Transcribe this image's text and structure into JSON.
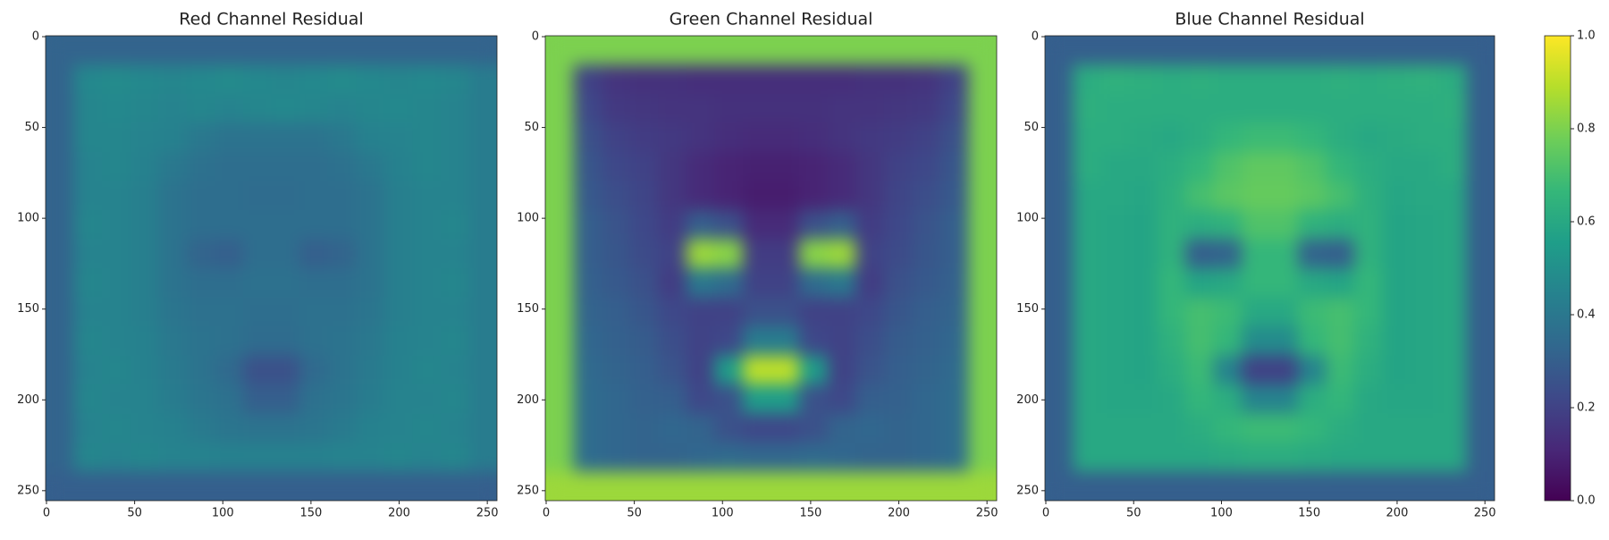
{
  "chart_data": [
    {
      "type": "heatmap",
      "title": "Red Channel Residual",
      "xlim": [
        -0.5,
        255.5
      ],
      "ylim": [
        255.5,
        -0.5
      ],
      "xticks": [
        0,
        50,
        100,
        150,
        200,
        250
      ],
      "yticks": [
        0,
        50,
        100,
        150,
        200,
        250
      ],
      "z": [
        [
          0.32,
          0.32,
          0.32,
          0.32,
          0.32,
          0.32,
          0.32,
          0.32,
          0.32,
          0.32,
          0.32,
          0.32,
          0.32,
          0.32,
          0.32,
          0.32
        ],
        [
          0.32,
          0.47,
          0.48,
          0.47,
          0.46,
          0.47,
          0.48,
          0.47,
          0.46,
          0.47,
          0.48,
          0.47,
          0.46,
          0.47,
          0.46,
          0.42
        ],
        [
          0.32,
          0.46,
          0.47,
          0.46,
          0.45,
          0.46,
          0.45,
          0.46,
          0.47,
          0.46,
          0.45,
          0.46,
          0.47,
          0.46,
          0.45,
          0.42
        ],
        [
          0.32,
          0.46,
          0.46,
          0.45,
          0.44,
          0.4,
          0.38,
          0.38,
          0.38,
          0.38,
          0.4,
          0.44,
          0.45,
          0.46,
          0.45,
          0.42
        ],
        [
          0.32,
          0.45,
          0.46,
          0.44,
          0.4,
          0.37,
          0.36,
          0.36,
          0.36,
          0.36,
          0.37,
          0.4,
          0.44,
          0.46,
          0.45,
          0.42
        ],
        [
          0.32,
          0.45,
          0.45,
          0.43,
          0.38,
          0.36,
          0.36,
          0.35,
          0.35,
          0.36,
          0.36,
          0.38,
          0.43,
          0.45,
          0.45,
          0.42
        ],
        [
          0.32,
          0.46,
          0.45,
          0.43,
          0.38,
          0.36,
          0.36,
          0.36,
          0.36,
          0.36,
          0.36,
          0.38,
          0.43,
          0.45,
          0.46,
          0.42
        ],
        [
          0.32,
          0.45,
          0.45,
          0.43,
          0.38,
          0.32,
          0.3,
          0.36,
          0.36,
          0.3,
          0.32,
          0.38,
          0.43,
          0.45,
          0.45,
          0.42
        ],
        [
          0.32,
          0.46,
          0.45,
          0.43,
          0.38,
          0.36,
          0.36,
          0.37,
          0.37,
          0.36,
          0.36,
          0.38,
          0.43,
          0.45,
          0.46,
          0.42
        ],
        [
          0.32,
          0.45,
          0.45,
          0.43,
          0.39,
          0.37,
          0.37,
          0.36,
          0.36,
          0.37,
          0.37,
          0.39,
          0.43,
          0.45,
          0.45,
          0.42
        ],
        [
          0.32,
          0.46,
          0.45,
          0.44,
          0.4,
          0.38,
          0.37,
          0.35,
          0.35,
          0.37,
          0.38,
          0.4,
          0.44,
          0.45,
          0.46,
          0.42
        ],
        [
          0.32,
          0.45,
          0.46,
          0.44,
          0.41,
          0.38,
          0.34,
          0.25,
          0.25,
          0.34,
          0.38,
          0.41,
          0.44,
          0.46,
          0.45,
          0.42
        ],
        [
          0.32,
          0.46,
          0.45,
          0.45,
          0.42,
          0.39,
          0.37,
          0.3,
          0.3,
          0.37,
          0.39,
          0.42,
          0.45,
          0.45,
          0.46,
          0.42
        ],
        [
          0.32,
          0.45,
          0.46,
          0.45,
          0.44,
          0.41,
          0.39,
          0.38,
          0.38,
          0.39,
          0.41,
          0.44,
          0.45,
          0.46,
          0.45,
          0.42
        ],
        [
          0.32,
          0.46,
          0.45,
          0.46,
          0.45,
          0.45,
          0.44,
          0.44,
          0.44,
          0.44,
          0.45,
          0.45,
          0.46,
          0.45,
          0.46,
          0.42
        ],
        [
          0.3,
          0.3,
          0.3,
          0.3,
          0.3,
          0.3,
          0.3,
          0.3,
          0.3,
          0.3,
          0.3,
          0.3,
          0.3,
          0.3,
          0.3,
          0.3
        ]
      ]
    },
    {
      "type": "heatmap",
      "title": "Green Channel Residual",
      "xlim": [
        -0.5,
        255.5
      ],
      "ylim": [
        255.5,
        -0.5
      ],
      "xticks": [
        0,
        50,
        100,
        150,
        200,
        250
      ],
      "yticks": [
        0,
        50,
        100,
        150,
        200,
        250
      ],
      "z": [
        [
          0.8,
          0.8,
          0.8,
          0.8,
          0.8,
          0.8,
          0.8,
          0.8,
          0.8,
          0.8,
          0.8,
          0.8,
          0.8,
          0.8,
          0.8,
          0.8
        ],
        [
          0.8,
          0.2,
          0.15,
          0.14,
          0.14,
          0.13,
          0.13,
          0.13,
          0.13,
          0.13,
          0.13,
          0.14,
          0.14,
          0.15,
          0.2,
          0.8
        ],
        [
          0.8,
          0.22,
          0.17,
          0.16,
          0.15,
          0.15,
          0.14,
          0.14,
          0.14,
          0.14,
          0.15,
          0.15,
          0.16,
          0.17,
          0.22,
          0.8
        ],
        [
          0.8,
          0.25,
          0.2,
          0.18,
          0.17,
          0.15,
          0.13,
          0.12,
          0.12,
          0.13,
          0.15,
          0.17,
          0.18,
          0.2,
          0.25,
          0.8
        ],
        [
          0.8,
          0.27,
          0.22,
          0.2,
          0.16,
          0.12,
          0.1,
          0.09,
          0.09,
          0.1,
          0.12,
          0.16,
          0.2,
          0.22,
          0.27,
          0.8
        ],
        [
          0.8,
          0.28,
          0.24,
          0.21,
          0.16,
          0.12,
          0.1,
          0.08,
          0.08,
          0.1,
          0.12,
          0.16,
          0.21,
          0.24,
          0.28,
          0.8
        ],
        [
          0.8,
          0.3,
          0.26,
          0.22,
          0.18,
          0.3,
          0.25,
          0.12,
          0.12,
          0.25,
          0.3,
          0.18,
          0.22,
          0.26,
          0.3,
          0.8
        ],
        [
          0.8,
          0.3,
          0.27,
          0.23,
          0.2,
          0.85,
          0.82,
          0.18,
          0.18,
          0.82,
          0.85,
          0.2,
          0.23,
          0.27,
          0.3,
          0.8
        ],
        [
          0.8,
          0.31,
          0.28,
          0.25,
          0.18,
          0.4,
          0.35,
          0.2,
          0.2,
          0.35,
          0.4,
          0.18,
          0.25,
          0.28,
          0.31,
          0.8
        ],
        [
          0.8,
          0.32,
          0.3,
          0.27,
          0.22,
          0.2,
          0.2,
          0.25,
          0.25,
          0.2,
          0.2,
          0.22,
          0.27,
          0.3,
          0.32,
          0.8
        ],
        [
          0.8,
          0.33,
          0.31,
          0.29,
          0.24,
          0.2,
          0.22,
          0.42,
          0.42,
          0.22,
          0.2,
          0.24,
          0.29,
          0.31,
          0.33,
          0.8
        ],
        [
          0.8,
          0.34,
          0.32,
          0.3,
          0.26,
          0.2,
          0.55,
          0.9,
          0.9,
          0.55,
          0.2,
          0.26,
          0.3,
          0.32,
          0.34,
          0.8
        ],
        [
          0.8,
          0.35,
          0.33,
          0.31,
          0.3,
          0.22,
          0.25,
          0.55,
          0.55,
          0.25,
          0.22,
          0.3,
          0.31,
          0.33,
          0.35,
          0.8
        ],
        [
          0.8,
          0.35,
          0.33,
          0.32,
          0.33,
          0.32,
          0.25,
          0.22,
          0.22,
          0.25,
          0.32,
          0.33,
          0.32,
          0.33,
          0.35,
          0.8
        ],
        [
          0.8,
          0.35,
          0.33,
          0.32,
          0.32,
          0.33,
          0.34,
          0.33,
          0.33,
          0.34,
          0.33,
          0.32,
          0.32,
          0.33,
          0.35,
          0.8
        ],
        [
          0.85,
          0.85,
          0.85,
          0.85,
          0.85,
          0.85,
          0.85,
          0.85,
          0.85,
          0.85,
          0.85,
          0.85,
          0.85,
          0.85,
          0.85,
          0.85
        ]
      ]
    },
    {
      "type": "heatmap",
      "title": "Blue Channel Residual",
      "xlim": [
        -0.5,
        255.5
      ],
      "ylim": [
        255.5,
        -0.5
      ],
      "xticks": [
        0,
        50,
        100,
        150,
        200,
        250
      ],
      "yticks": [
        0,
        50,
        100,
        150,
        200,
        250
      ],
      "z": [
        [
          0.3,
          0.3,
          0.3,
          0.3,
          0.3,
          0.3,
          0.3,
          0.3,
          0.3,
          0.3,
          0.3,
          0.3,
          0.3,
          0.3,
          0.3,
          0.3
        ],
        [
          0.3,
          0.62,
          0.64,
          0.63,
          0.62,
          0.63,
          0.62,
          0.62,
          0.62,
          0.62,
          0.63,
          0.62,
          0.63,
          0.64,
          0.62,
          0.3
        ],
        [
          0.3,
          0.63,
          0.62,
          0.62,
          0.62,
          0.62,
          0.62,
          0.62,
          0.62,
          0.62,
          0.62,
          0.62,
          0.62,
          0.62,
          0.63,
          0.3
        ],
        [
          0.3,
          0.62,
          0.62,
          0.61,
          0.6,
          0.62,
          0.66,
          0.68,
          0.68,
          0.66,
          0.62,
          0.6,
          0.61,
          0.62,
          0.62,
          0.3
        ],
        [
          0.3,
          0.62,
          0.6,
          0.6,
          0.62,
          0.66,
          0.72,
          0.75,
          0.75,
          0.72,
          0.66,
          0.62,
          0.6,
          0.6,
          0.62,
          0.3
        ],
        [
          0.3,
          0.6,
          0.6,
          0.59,
          0.63,
          0.7,
          0.74,
          0.76,
          0.76,
          0.74,
          0.7,
          0.63,
          0.59,
          0.6,
          0.6,
          0.3
        ],
        [
          0.3,
          0.6,
          0.59,
          0.58,
          0.64,
          0.62,
          0.64,
          0.72,
          0.72,
          0.64,
          0.62,
          0.64,
          0.58,
          0.59,
          0.6,
          0.3
        ],
        [
          0.3,
          0.6,
          0.59,
          0.58,
          0.64,
          0.3,
          0.32,
          0.66,
          0.66,
          0.32,
          0.3,
          0.64,
          0.58,
          0.59,
          0.6,
          0.3
        ],
        [
          0.3,
          0.6,
          0.59,
          0.58,
          0.66,
          0.58,
          0.6,
          0.66,
          0.66,
          0.6,
          0.58,
          0.66,
          0.58,
          0.59,
          0.6,
          0.3
        ],
        [
          0.3,
          0.6,
          0.59,
          0.58,
          0.66,
          0.7,
          0.68,
          0.6,
          0.6,
          0.68,
          0.7,
          0.66,
          0.58,
          0.59,
          0.6,
          0.3
        ],
        [
          0.3,
          0.6,
          0.59,
          0.58,
          0.64,
          0.7,
          0.66,
          0.48,
          0.48,
          0.66,
          0.7,
          0.64,
          0.58,
          0.59,
          0.6,
          0.3
        ],
        [
          0.3,
          0.6,
          0.59,
          0.58,
          0.62,
          0.68,
          0.45,
          0.2,
          0.2,
          0.45,
          0.68,
          0.62,
          0.58,
          0.59,
          0.6,
          0.3
        ],
        [
          0.3,
          0.6,
          0.59,
          0.59,
          0.6,
          0.66,
          0.62,
          0.45,
          0.45,
          0.62,
          0.66,
          0.6,
          0.59,
          0.59,
          0.6,
          0.3
        ],
        [
          0.3,
          0.6,
          0.6,
          0.6,
          0.6,
          0.62,
          0.66,
          0.68,
          0.68,
          0.66,
          0.62,
          0.6,
          0.6,
          0.6,
          0.6,
          0.3
        ],
        [
          0.3,
          0.6,
          0.6,
          0.6,
          0.6,
          0.6,
          0.61,
          0.62,
          0.62,
          0.61,
          0.6,
          0.6,
          0.6,
          0.6,
          0.6,
          0.3
        ],
        [
          0.3,
          0.3,
          0.3,
          0.3,
          0.3,
          0.3,
          0.3,
          0.3,
          0.3,
          0.3,
          0.3,
          0.3,
          0.3,
          0.3,
          0.3,
          0.3
        ]
      ]
    }
  ],
  "colorbar": {
    "colormap": "viridis",
    "clim": [
      0,
      1
    ],
    "ticks": [
      {
        "value": 0,
        "label": "0.0"
      },
      {
        "value": 0.2,
        "label": "0.2"
      },
      {
        "value": 0.4,
        "label": "0.4"
      },
      {
        "value": 0.6,
        "label": "0.6"
      },
      {
        "value": 0.8,
        "label": "0.8"
      },
      {
        "value": 1,
        "label": "1.0"
      }
    ]
  }
}
